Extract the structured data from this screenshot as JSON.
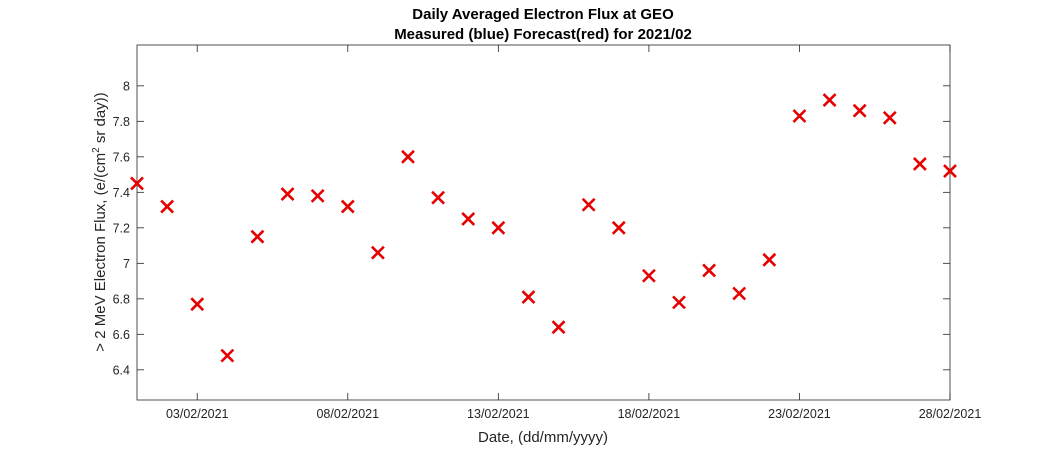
{
  "chart_data": {
    "type": "scatter",
    "title": "Daily Averaged Electron Flux at GEO",
    "subtitle": "Measured (blue) Forecast(red) for 2021/02",
    "xlabel": "Date, (dd/mm/yyyy)",
    "ylabel": "> 2 MeV Electron Flux, (e/(cm2 sr day))",
    "ylabel_parts": {
      "before_sup": "> 2 MeV Electron Flux, (e/(cm",
      "sup": "2",
      "after_sup": " sr day))"
    },
    "xlim": [
      "01/02/2021",
      "28/02/2021"
    ],
    "ylim": [
      6.23,
      8.23
    ],
    "x_tick_labels": [
      "03/02/2021",
      "08/02/2021",
      "13/02/2021",
      "18/02/2021",
      "23/02/2021",
      "28/02/2021"
    ],
    "y_tick_labels": [
      "6.4",
      "6.6",
      "6.8",
      "7",
      "7.2",
      "7.4",
      "7.6",
      "7.8",
      "8"
    ],
    "grid": false,
    "series": [
      {
        "color": "#e60000",
        "marker": "x",
        "points": [
          {
            "x": "01/02/2021",
            "y": 7.45
          },
          {
            "x": "02/02/2021",
            "y": 7.32
          },
          {
            "x": "03/02/2021",
            "y": 6.77
          },
          {
            "x": "04/02/2021",
            "y": 6.48
          },
          {
            "x": "05/02/2021",
            "y": 7.15
          },
          {
            "x": "06/02/2021",
            "y": 7.39
          },
          {
            "x": "07/02/2021",
            "y": 7.38
          },
          {
            "x": "08/02/2021",
            "y": 7.32
          },
          {
            "x": "09/02/2021",
            "y": 7.06
          },
          {
            "x": "10/02/2021",
            "y": 7.6
          },
          {
            "x": "11/02/2021",
            "y": 7.37
          },
          {
            "x": "12/02/2021",
            "y": 7.25
          },
          {
            "x": "13/02/2021",
            "y": 7.2
          },
          {
            "x": "14/02/2021",
            "y": 6.81
          },
          {
            "x": "15/02/2021",
            "y": 6.64
          },
          {
            "x": "16/02/2021",
            "y": 7.33
          },
          {
            "x": "17/02/2021",
            "y": 7.2
          },
          {
            "x": "18/02/2021",
            "y": 6.93
          },
          {
            "x": "19/02/2021",
            "y": 6.78
          },
          {
            "x": "20/02/2021",
            "y": 6.96
          },
          {
            "x": "21/02/2021",
            "y": 6.83
          },
          {
            "x": "22/02/2021",
            "y": 7.02
          },
          {
            "x": "23/02/2021",
            "y": 7.83
          },
          {
            "x": "24/02/2021",
            "y": 7.92
          },
          {
            "x": "25/02/2021",
            "y": 7.86
          },
          {
            "x": "26/02/2021",
            "y": 7.82
          },
          {
            "x": "27/02/2021",
            "y": 7.56
          },
          {
            "x": "28/02/2021",
            "y": 7.52
          }
        ]
      }
    ]
  }
}
